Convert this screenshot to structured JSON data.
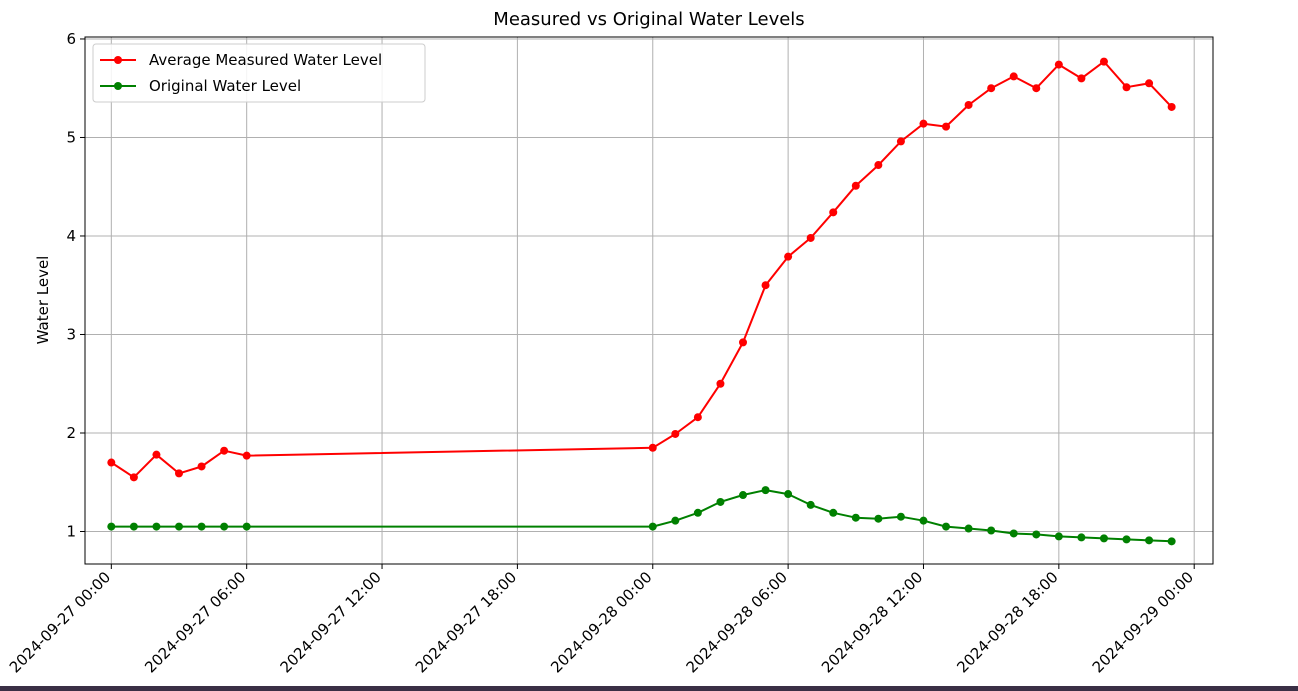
{
  "chart_data": {
    "type": "line",
    "title": "Measured vs Original Water Levels",
    "xlabel": "",
    "ylabel": "Water Level",
    "ylim": [
      0.67,
      6.02
    ],
    "xlim": [
      "2024-09-26 22:50",
      "2024-09-29 00:50"
    ],
    "yticks": [
      "1",
      "2",
      "3",
      "4",
      "5",
      "6"
    ],
    "xticks": [
      "2024-09-27 00:00",
      "2024-09-27 06:00",
      "2024-09-27 12:00",
      "2024-09-27 18:00",
      "2024-09-28 00:00",
      "2024-09-28 06:00",
      "2024-09-28 12:00",
      "2024-09-28 18:00",
      "2024-09-29 00:00"
    ],
    "grid": true,
    "legend_position": "upper-left",
    "series": [
      {
        "name": "Average Measured Water Level",
        "color": "#ff0000",
        "x": [
          "2024-09-27 00:00",
          "2024-09-27 01:00",
          "2024-09-27 02:00",
          "2024-09-27 03:00",
          "2024-09-27 04:00",
          "2024-09-27 05:00",
          "2024-09-27 06:00",
          "2024-09-28 00:00",
          "2024-09-28 01:00",
          "2024-09-28 02:00",
          "2024-09-28 03:00",
          "2024-09-28 04:00",
          "2024-09-28 05:00",
          "2024-09-28 06:00",
          "2024-09-28 07:00",
          "2024-09-28 08:00",
          "2024-09-28 09:00",
          "2024-09-28 10:00",
          "2024-09-28 11:00",
          "2024-09-28 12:00",
          "2024-09-28 13:00",
          "2024-09-28 14:00",
          "2024-09-28 15:00",
          "2024-09-28 16:00",
          "2024-09-28 17:00",
          "2024-09-28 18:00",
          "2024-09-28 19:00",
          "2024-09-28 20:00",
          "2024-09-28 21:00",
          "2024-09-28 22:00",
          "2024-09-28 23:00"
        ],
        "values": [
          1.7,
          1.55,
          1.78,
          1.59,
          1.66,
          1.82,
          1.77,
          1.85,
          1.99,
          2.16,
          2.5,
          2.92,
          3.5,
          3.79,
          3.98,
          4.24,
          4.51,
          4.72,
          4.96,
          5.14,
          5.11,
          5.33,
          5.5,
          5.62,
          5.5,
          5.74,
          5.6,
          5.77,
          5.51,
          5.55,
          5.31
        ]
      },
      {
        "name": "Original Water Level",
        "color": "#008000",
        "x": [
          "2024-09-27 00:00",
          "2024-09-27 01:00",
          "2024-09-27 02:00",
          "2024-09-27 03:00",
          "2024-09-27 04:00",
          "2024-09-27 05:00",
          "2024-09-27 06:00",
          "2024-09-28 00:00",
          "2024-09-28 01:00",
          "2024-09-28 02:00",
          "2024-09-28 03:00",
          "2024-09-28 04:00",
          "2024-09-28 05:00",
          "2024-09-28 06:00",
          "2024-09-28 07:00",
          "2024-09-28 08:00",
          "2024-09-28 09:00",
          "2024-09-28 10:00",
          "2024-09-28 11:00",
          "2024-09-28 12:00",
          "2024-09-28 13:00",
          "2024-09-28 14:00",
          "2024-09-28 15:00",
          "2024-09-28 16:00",
          "2024-09-28 17:00",
          "2024-09-28 18:00",
          "2024-09-28 19:00",
          "2024-09-28 20:00",
          "2024-09-28 21:00",
          "2024-09-28 22:00",
          "2024-09-28 23:00"
        ],
        "values": [
          1.05,
          1.05,
          1.05,
          1.05,
          1.05,
          1.05,
          1.05,
          1.05,
          1.11,
          1.19,
          1.3,
          1.37,
          1.42,
          1.38,
          1.27,
          1.19,
          1.14,
          1.13,
          1.15,
          1.11,
          1.05,
          1.03,
          1.01,
          0.98,
          0.97,
          0.95,
          0.94,
          0.93,
          0.92,
          0.91,
          0.9
        ]
      }
    ]
  }
}
